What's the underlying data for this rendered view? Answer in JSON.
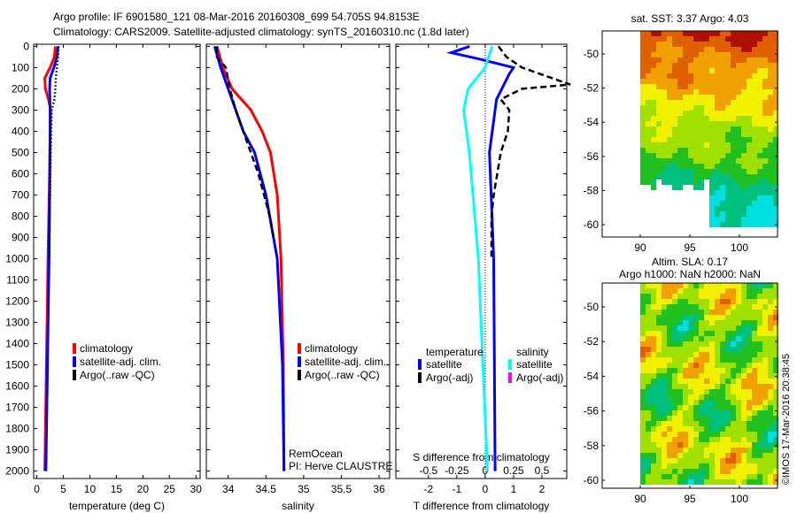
{
  "title_line1": "Argo profile: IF 6901580_121 08-Mar-2016 20160308_699 54.705S 94.8153E",
  "title_line2": "Climatology: CARS2009. Satellite-adjusted climatology: synTS_20160310.nc (1.8d later)",
  "watermark": "©IMOS 17-Mar-2016 20:38:45",
  "colors": {
    "climatology": "#ff0000",
    "satellite": "#0000ff",
    "argo": "#000000",
    "sal_satellite": "#00ffff",
    "sal_argo": "#ff00ff"
  },
  "chart_data": [
    {
      "type": "line",
      "id": "temperature",
      "xlabel": "temperature (deg C)",
      "xlim": [
        -0.6,
        30.8
      ],
      "ylim": [
        -10,
        2035
      ],
      "yreverse": true,
      "xticks": [
        0,
        5,
        10,
        15,
        20,
        25,
        30
      ],
      "yticks": [
        0,
        100,
        200,
        300,
        400,
        500,
        600,
        700,
        800,
        900,
        1000,
        1100,
        1200,
        1300,
        1400,
        1500,
        1600,
        1700,
        1800,
        1900,
        2000
      ],
      "legend": [
        "climatology",
        "satellite-adj. clim.",
        "Argo(..raw -QC)"
      ],
      "series": [
        {
          "name": "climatology",
          "color": "#ff0000",
          "style": "solid",
          "depth": [
            0,
            50,
            100,
            150,
            200,
            250,
            300,
            400,
            600,
            1000,
            1500,
            2000
          ],
          "values": [
            3.5,
            3.3,
            2.5,
            1.5,
            1.6,
            2.2,
            2.6,
            2.5,
            2.4,
            2.1,
            1.8,
            1.5
          ]
        },
        {
          "name": "satellite-adj. clim.",
          "color": "#0000ff",
          "style": "solid",
          "depth": [
            0,
            50,
            100,
            150,
            200,
            300,
            400,
            1000,
            1500,
            2000
          ],
          "values": [
            4.0,
            3.8,
            3.2,
            2.5,
            2.4,
            2.5,
            2.5,
            2.3,
            2.0,
            1.7
          ]
        },
        {
          "name": "Argo(..raw -QC)",
          "color": "#000000",
          "style": "dotted",
          "depth": [
            0,
            50,
            100,
            150,
            200,
            250,
            300,
            400,
            500,
            1000
          ],
          "values": [
            4.1,
            4.0,
            3.8,
            3.6,
            3.5,
            3.3,
            2.8,
            2.7,
            2.6,
            2.3
          ]
        }
      ]
    },
    {
      "type": "line",
      "id": "salinity",
      "xlabel": "salinity",
      "xlim": [
        33.71,
        36.14
      ],
      "ylim": [
        -10,
        2035
      ],
      "yreverse": true,
      "xticks": [
        34,
        34.5,
        35,
        35.5,
        36
      ],
      "legend": [
        "climatology",
        "satellite-adj. clim.",
        "Argo(..raw -QC)"
      ],
      "annotation": [
        "RemOcean",
        "PI: Herve CLAUSTRE"
      ],
      "series": [
        {
          "name": "climatology",
          "color": "#ff0000",
          "style": "solid",
          "depth": [
            0,
            100,
            200,
            300,
            400,
            500,
            700,
            1000,
            1500,
            2000
          ],
          "values": [
            33.85,
            33.93,
            34.05,
            34.3,
            34.45,
            34.56,
            34.65,
            34.7,
            34.73,
            34.74
          ]
        },
        {
          "name": "satellite-adj. clim.",
          "color": "#0000ff",
          "style": "solid",
          "depth": [
            0,
            100,
            200,
            300,
            400,
            500,
            700,
            1000,
            1500,
            2000
          ],
          "values": [
            33.82,
            33.9,
            34.0,
            34.1,
            34.2,
            34.35,
            34.5,
            34.65,
            34.72,
            34.74
          ]
        },
        {
          "name": "Argo(..raw -QC)",
          "color": "#000000",
          "style": "dashed",
          "depth": [
            0,
            50,
            100,
            200,
            300,
            400,
            600,
            800,
            900
          ],
          "values": [
            33.85,
            33.85,
            33.97,
            34.02,
            34.1,
            34.2,
            34.4,
            34.55,
            34.6
          ]
        }
      ]
    },
    {
      "type": "line",
      "id": "difference",
      "xlabel": "T difference from climatology",
      "x2label": "S difference from climatology",
      "xlim": [
        -3.15,
        2.875
      ],
      "ylim": [
        -10,
        2035
      ],
      "yreverse": true,
      "xticks": [
        -2,
        -1,
        0,
        1,
        2
      ],
      "x2ticks": [
        "-0.5",
        "-0.25",
        "0",
        "0.25",
        "0.5"
      ],
      "x2ratio": 0.25,
      "legend_temp": {
        "title": "temperature",
        "items": [
          "satellite",
          "Argo(-adj)"
        ]
      },
      "legend_sal": {
        "title": "salinity",
        "items": [
          "satellite",
          "Argo(-adj)"
        ]
      },
      "series": [
        {
          "name": "T satellite",
          "color": "#0000ff",
          "style": "solid",
          "depth": [
            0,
            30,
            60,
            100,
            130,
            250,
            500,
            1000,
            2000
          ],
          "values": [
            -0.55,
            -1.2,
            -0.2,
            1.0,
            0.85,
            0.4,
            0.15,
            0.3,
            0.35
          ]
        },
        {
          "name": "S satellite",
          "unit": "S",
          "color": "#00ffff",
          "style": "solid",
          "depth": [
            0,
            100,
            200,
            300,
            500,
            1000,
            1500,
            2000
          ],
          "values": [
            0.06,
            0,
            -0.15,
            -0.19,
            -0.14,
            -0.06,
            -0.02,
            0.02
          ]
        },
        {
          "name": "T Argo(-adj)",
          "color": "#000000",
          "style": "dashed",
          "depth": [
            0,
            50,
            100,
            180,
            200,
            250,
            300,
            400,
            500,
            700,
            800,
            1000
          ],
          "values": [
            0.47,
            0.75,
            1.3,
            3.0,
            1.3,
            0.55,
            0.85,
            0.8,
            0.55,
            0.3,
            0.22,
            0.22
          ]
        }
      ]
    },
    {
      "type": "heatmap",
      "id": "sst_map",
      "title": "sat. SST: 3.37 Argo: 4.03",
      "xticks": [
        90,
        95,
        100
      ],
      "yticks": [
        -50,
        -52,
        -54,
        -56,
        -58,
        -60
      ]
    },
    {
      "type": "heatmap",
      "id": "sla_map",
      "title": [
        "Altim. SLA: 0.17",
        "Argo h1000: NaN h2000: NaN"
      ],
      "xticks": [
        90,
        95,
        100
      ],
      "yticks": [
        -50,
        -52,
        -54,
        -56,
        -58,
        -60
      ]
    }
  ]
}
